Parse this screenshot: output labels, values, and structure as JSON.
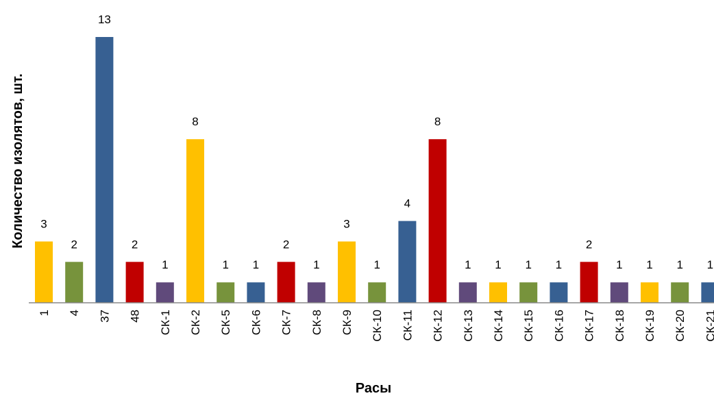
{
  "chart_data": {
    "type": "bar",
    "title": "",
    "xlabel": "Расы",
    "ylabel": "Количество изолятов, шт.",
    "ylim": [
      0,
      13
    ],
    "grid": false,
    "legend": "none",
    "categories": [
      "1",
      "4",
      "37",
      "48",
      "СК-1",
      "СК-2",
      "СК-5",
      "СК-6",
      "СК-7",
      "СК-8",
      "СК-9",
      "СК-10",
      "СК-11",
      "СК-12",
      "СК-13",
      "СК-14",
      "СК-15",
      "СК-16",
      "СК-17",
      "СК-18",
      "СК-19",
      "СК-20",
      "СК-21"
    ],
    "values": [
      3,
      2,
      13,
      2,
      1,
      8,
      1,
      1,
      2,
      1,
      3,
      1,
      4,
      8,
      1,
      1,
      1,
      1,
      2,
      1,
      1,
      1,
      1
    ],
    "bar_colors": [
      "#FFC000",
      "#77933C",
      "#376092",
      "#C00000",
      "#604A7B",
      "#FFC000",
      "#77933C",
      "#376092",
      "#C00000",
      "#604A7B",
      "#FFC000",
      "#77933C",
      "#376092",
      "#C00000",
      "#604A7B",
      "#FFC000",
      "#77933C",
      "#376092",
      "#C00000",
      "#604A7B",
      "#FFC000",
      "#77933C",
      "#376092"
    ],
    "data_labels": [
      "3",
      "2",
      "13",
      "2",
      "1",
      "8",
      "1",
      "1",
      "2",
      "1",
      "3",
      "1",
      "4",
      "8",
      "1",
      "1",
      "1",
      "1",
      "2",
      "1",
      "1",
      "1",
      "1"
    ]
  }
}
